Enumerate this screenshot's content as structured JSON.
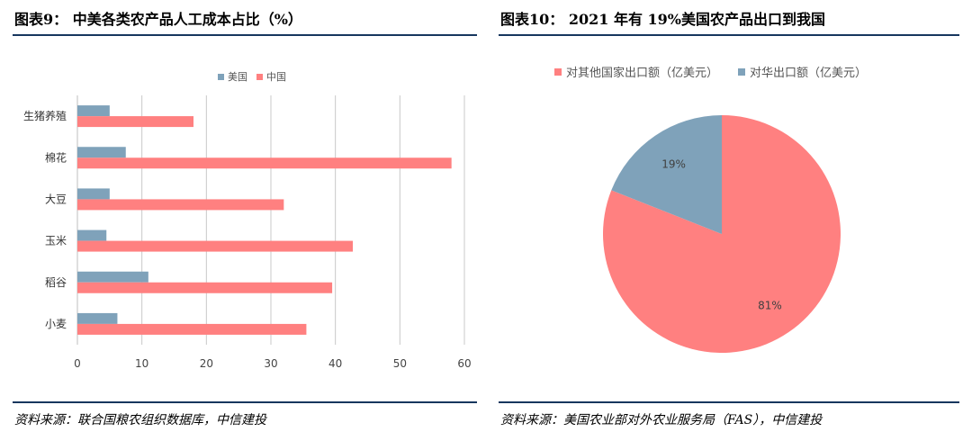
{
  "left": {
    "title": "图表9：   中美各类农产品人工成本占比（%）",
    "source": "资料来源：联合国粮农组织数据库，中信建投"
  },
  "right": {
    "title": "图表10：  2021 年有 19%美国农产品出口到我国",
    "source": "资料来源：美国农业部对外农业服务局（FAS），中信建投"
  },
  "chart_data": [
    {
      "type": "bar",
      "orientation": "horizontal",
      "categories": [
        "生猪养殖",
        "棉花",
        "大豆",
        "玉米",
        "稻谷",
        "小麦"
      ],
      "series": [
        {
          "name": "美国",
          "color": "#7fa2ba",
          "values": [
            5,
            7.5,
            5,
            4.5,
            11,
            6.2
          ]
        },
        {
          "name": "中国",
          "color": "#ff8080",
          "values": [
            18,
            58,
            32,
            42.7,
            39.5,
            35.5
          ]
        }
      ],
      "xlim": [
        0,
        60
      ],
      "xticks": [
        0,
        10,
        20,
        30,
        40,
        50,
        60
      ],
      "xtick_labels": [
        "0",
        "10",
        "20",
        "30",
        "40",
        "50",
        "60"
      ],
      "grid": true,
      "legend_position": "top-center"
    },
    {
      "type": "pie",
      "slices": [
        {
          "name": "对其他国家出口额（亿美元）",
          "value": 81,
          "label": "81%",
          "color": "#ff8080"
        },
        {
          "name": "对华出口额（亿美元）",
          "value": 19,
          "label": "19%",
          "color": "#7fa2ba"
        }
      ],
      "legend_position": "top"
    }
  ]
}
